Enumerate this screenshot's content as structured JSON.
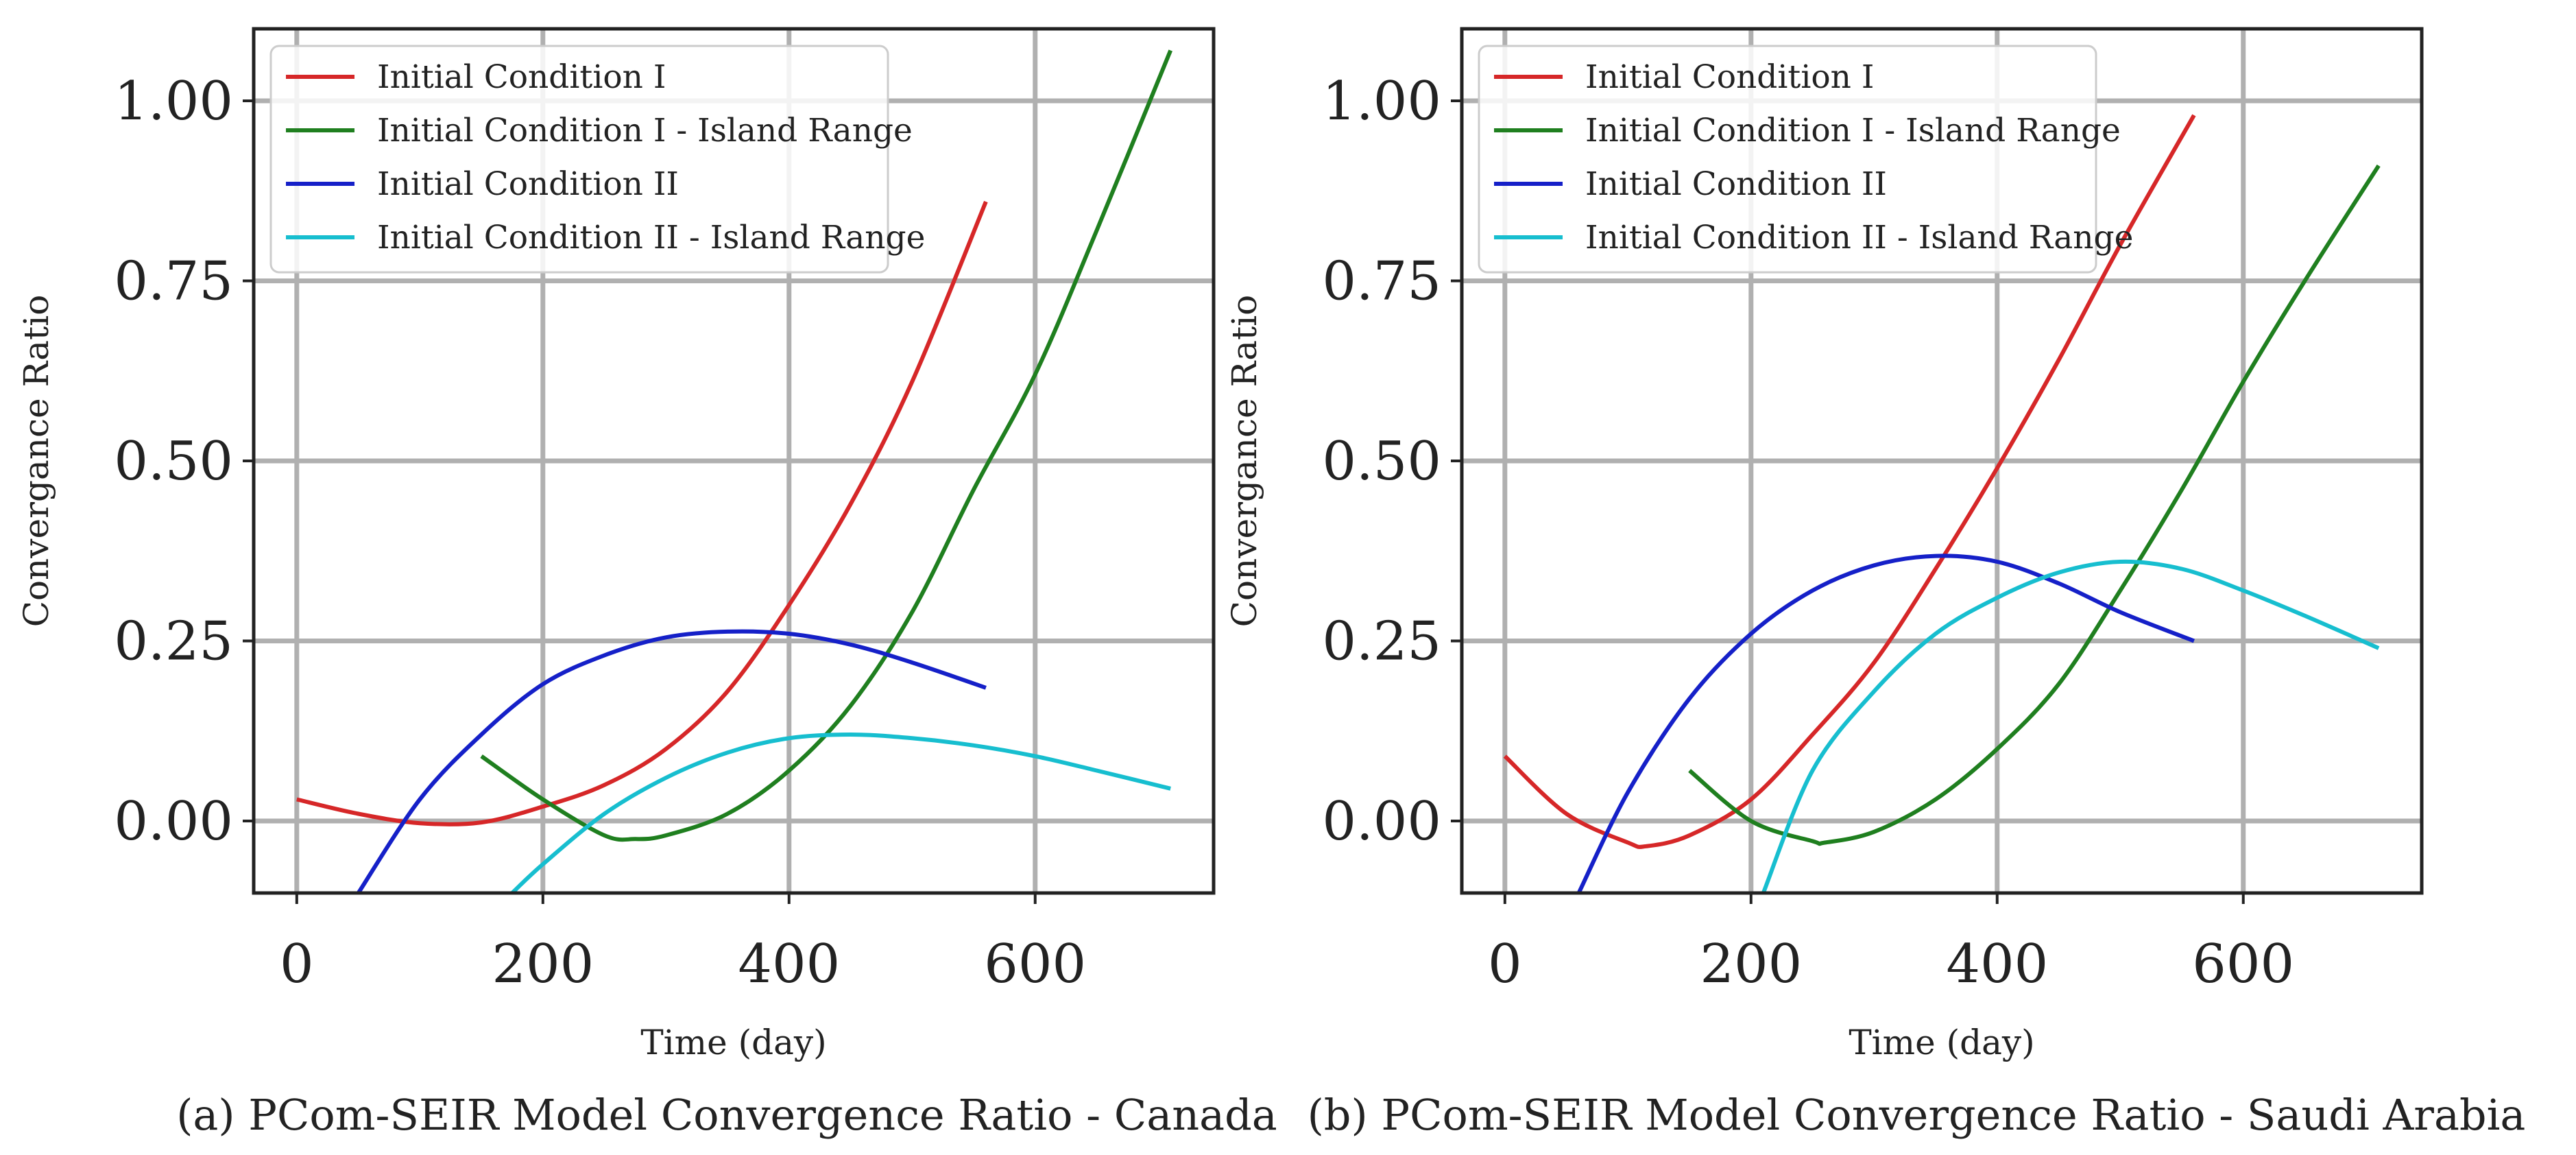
{
  "chart_data": [
    {
      "type": "line",
      "title": "",
      "caption": "(a)  PCom-SEIR Model Convergence Ratio - Canada",
      "xlabel": "Time (day)",
      "ylabel": "Convergance Ratio",
      "xlim": [
        -35,
        745
      ],
      "ylim": [
        -0.1,
        1.1
      ],
      "xticks": [
        0,
        200,
        400,
        600
      ],
      "yticks": [
        0.0,
        0.25,
        0.5,
        0.75,
        1.0
      ],
      "xtick_labels": [
        "0",
        "200",
        "400",
        "600"
      ],
      "ytick_labels": [
        "0.00",
        "0.25",
        "0.50",
        "0.75",
        "1.00"
      ],
      "grid": true,
      "legend_position": "top-left",
      "series": [
        {
          "name": "Initial Condition I",
          "color": "#d62728",
          "x": [
            0,
            50,
            100,
            150,
            200,
            250,
            300,
            350,
            400,
            450,
            500,
            560
          ],
          "y": [
            0.03,
            0.01,
            -0.003,
            -0.002,
            0.02,
            0.05,
            0.1,
            0.18,
            0.3,
            0.44,
            0.61,
            0.86
          ]
        },
        {
          "name": "Initial Condition I - Island Range",
          "color": "#1f7f1f",
          "x": [
            150,
            200,
            250,
            275,
            300,
            350,
            400,
            450,
            500,
            550,
            600,
            650,
            710
          ],
          "y": [
            0.09,
            0.03,
            -0.02,
            -0.025,
            -0.02,
            0.01,
            0.07,
            0.16,
            0.29,
            0.46,
            0.62,
            0.82,
            1.07
          ]
        },
        {
          "name": "Initial Condition II",
          "color": "#1520c8",
          "x": [
            50,
            100,
            150,
            200,
            250,
            300,
            350,
            400,
            450,
            500,
            560
          ],
          "y": [
            -0.1,
            0.03,
            0.12,
            0.19,
            0.23,
            0.255,
            0.263,
            0.26,
            0.245,
            0.22,
            0.185
          ]
        },
        {
          "name": "Initial Condition II - Island Range",
          "color": "#17becf",
          "x": [
            175,
            200,
            250,
            300,
            350,
            400,
            450,
            500,
            550,
            600,
            650,
            710
          ],
          "y": [
            -0.1,
            -0.06,
            0.01,
            0.06,
            0.095,
            0.115,
            0.12,
            0.115,
            0.105,
            0.09,
            0.07,
            0.045
          ]
        }
      ]
    },
    {
      "type": "line",
      "title": "",
      "caption": "(b)  PCom-SEIR Model Convergence Ratio - Saudi Arabia",
      "xlabel": "Time (day)",
      "ylabel": "Convergance Ratio",
      "xlim": [
        -35,
        745
      ],
      "ylim": [
        -0.1,
        1.1
      ],
      "xticks": [
        0,
        200,
        400,
        600
      ],
      "yticks": [
        0.0,
        0.25,
        0.5,
        0.75,
        1.0
      ],
      "xtick_labels": [
        "0",
        "200",
        "400",
        "600"
      ],
      "ytick_labels": [
        "0.00",
        "0.25",
        "0.50",
        "0.75",
        "1.00"
      ],
      "grid": true,
      "legend_position": "top-left",
      "series": [
        {
          "name": "Initial Condition I",
          "color": "#d62728",
          "x": [
            0,
            50,
            100,
            115,
            150,
            200,
            250,
            300,
            350,
            400,
            450,
            500,
            560
          ],
          "y": [
            0.09,
            0.01,
            -0.03,
            -0.035,
            -0.02,
            0.03,
            0.12,
            0.22,
            0.35,
            0.49,
            0.64,
            0.8,
            0.98
          ]
        },
        {
          "name": "Initial Condition I - Island Range",
          "color": "#1f7f1f",
          "x": [
            150,
            200,
            250,
            260,
            300,
            350,
            400,
            450,
            500,
            550,
            600,
            650,
            710
          ],
          "y": [
            0.07,
            0.0,
            -0.028,
            -0.03,
            -0.015,
            0.03,
            0.1,
            0.19,
            0.32,
            0.46,
            0.61,
            0.75,
            0.91
          ]
        },
        {
          "name": "Initial Condition II",
          "color": "#1520c8",
          "x": [
            60,
            100,
            150,
            200,
            250,
            300,
            350,
            400,
            450,
            500,
            560
          ],
          "y": [
            -0.1,
            0.04,
            0.17,
            0.26,
            0.32,
            0.355,
            0.368,
            0.36,
            0.33,
            0.29,
            0.25
          ]
        },
        {
          "name": "Initial Condition II - Island Range",
          "color": "#17becf",
          "x": [
            210,
            250,
            300,
            350,
            400,
            450,
            500,
            550,
            600,
            650,
            710
          ],
          "y": [
            -0.1,
            0.07,
            0.18,
            0.26,
            0.31,
            0.345,
            0.36,
            0.35,
            0.32,
            0.285,
            0.24
          ]
        }
      ]
    }
  ]
}
